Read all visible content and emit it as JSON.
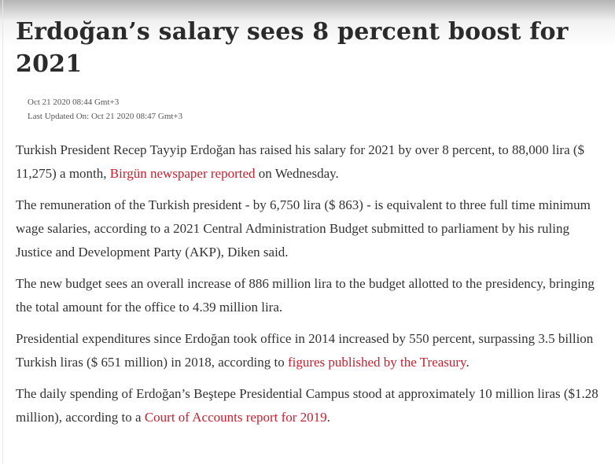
{
  "article": {
    "headline": "Erdoğan’s salary sees 8 percent boost for 2021",
    "published": "Oct 21 2020 08:44 Gmt+3",
    "updated_label": "Last Updated On:",
    "updated": "Oct 21 2020 08:47 Gmt+3",
    "colors": {
      "link": "#c8202f",
      "text": "#333333",
      "headline": "#2b2b2b"
    },
    "paragraphs": {
      "p1": {
        "a": "Turkish President Recep Tayyip Erdoğan has raised his salary for 2021 by over 8 percent, to 88,000 lira ($ 11,275) a month, ",
        "link": "Birgün newspaper reported",
        "b": " on Wednesday."
      },
      "p2": {
        "a": "The remuneration of the Turkish president - by 6,750 lira ($ 863) - is equivalent to three full time minimum wage salaries, according to a 2021 Central Administration Budget submitted to parliament by his ruling Justice and Development Party (AKP), Diken said."
      },
      "p3": {
        "a": "The new budget sees an overall increase of 886 million lira to the budget allotted to the presidency, bringing the total amount for the office to 4.39 million lira."
      },
      "p4": {
        "a": "Presidential expenditures since Erdoğan took office in 2014 increased by 550 percent, surpassing 3.5 billion Turkish liras ($ 651 million) in 2018, according to ",
        "link": "figures published by the Treasury",
        "b": "."
      },
      "p5": {
        "a": "The daily spending of Erdoğan’s Beştepe Presidential Campus stood at approximately 10 million liras ($1.28 million), according to a ",
        "link": "Court of Accounts report for 2019",
        "b": "."
      }
    }
  }
}
